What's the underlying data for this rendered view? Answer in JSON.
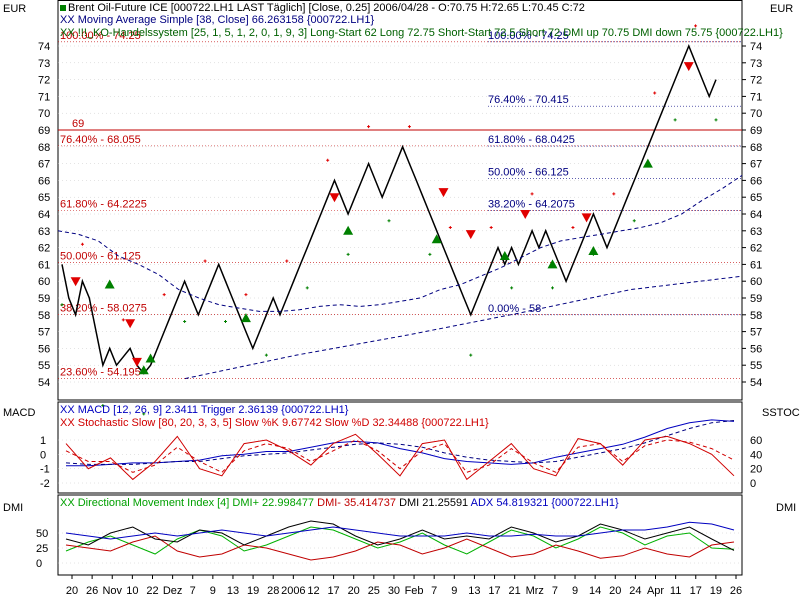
{
  "currency_left": "EUR",
  "currency_right": "EUR",
  "main_legend": {
    "line1": "Brent Oil-Future  ICE [000722.LH1 LAST Täglich] [Close, 0.25] 2006/04/28 - O:70.75 H:72.65 L:70.45 C:72",
    "line2": "XX Moving Average Simple [38, Close] 66.263158 {000722.LH1}",
    "line3": "XX !!!_KO-Handelssystem [25, 1, 5, 1, 2, 0, 1, 9, 3] Long-Start 62 Long 72.75 Short-Start 72.5 Short 72 DMI up 70.75 DMI down 75.75 {000722.LH1}"
  },
  "macd_panel": {
    "left_label": "MACD",
    "right_label": "SSTOC",
    "legend1": "XX MACD [12, 26, 9] 2.3411 Trigger 2.36139 {000722.LH1}",
    "legend2": "XX Stochastic Slow [80, 20, 3, 3, 5] Slow %K 9.67742 Slow %D 32.34488 {000722.LH1}"
  },
  "dmi_panel": {
    "left_label": "DMI",
    "right_label": "DMI",
    "legend_green": "XX Directional Movement Index [4] DMI+ 22.998477",
    "legend_red": "DMI- 35.414737",
    "legend_black": "DMI 21.25591",
    "legend_blue": "ADX 54.819321 {000722.LH1}"
  },
  "colors": {
    "price": "#000000",
    "fib_left": "#c00000",
    "fib_right": "#000080",
    "grid": "#c8c8c8",
    "buy": "#008000",
    "sell": "#e00000",
    "ma": "#000080",
    "macd": "#0000c0",
    "trigger": "#000080",
    "stoch": "#d00000"
  },
  "chart_data": [
    {
      "type": "line",
      "title": "Brent Oil-Future ICE",
      "ylabel": "EUR",
      "ylim": [
        53.5,
        74.5
      ],
      "yticks": [
        54,
        55,
        56,
        57,
        58,
        59,
        60,
        61,
        62,
        63,
        64,
        65,
        66,
        67,
        68,
        69,
        70,
        71,
        72,
        73,
        74
      ],
      "x_tick_labels": [
        "20",
        "26",
        "Nov",
        "10",
        "22",
        "Dez",
        "7",
        "9",
        "13",
        "19",
        "28",
        "2006",
        "12",
        "17",
        "20",
        "25",
        "30",
        "Feb",
        "7",
        "9",
        "13",
        "17",
        "21",
        "Mrz",
        "7",
        "9",
        "14",
        "20",
        "24",
        "Apr",
        "11",
        "17",
        "19",
        "26"
      ],
      "series": [
        {
          "name": "Brent Oil-Future",
          "values": [
            61,
            59,
            58,
            60,
            59,
            57,
            55,
            56,
            55,
            55.5,
            56,
            55,
            54.5,
            55,
            56,
            57,
            58,
            59,
            60,
            59,
            58,
            59,
            60,
            61,
            60,
            59,
            58,
            57,
            56,
            57,
            58,
            59,
            58,
            59,
            60,
            61,
            62,
            63,
            64,
            65,
            66,
            65,
            64,
            65,
            66,
            67,
            66,
            65,
            66,
            67,
            68,
            67,
            66,
            65,
            64,
            63,
            62,
            61,
            60,
            59,
            58,
            59,
            60,
            61,
            62,
            61,
            62,
            61,
            62,
            63,
            62,
            63,
            62,
            61,
            60,
            61,
            62,
            63,
            64,
            63,
            62,
            63,
            64,
            65,
            66,
            67,
            68,
            69,
            70,
            71,
            72,
            73,
            74,
            73,
            72,
            71,
            72
          ]
        },
        {
          "name": "Moving Average Simple [38, Close]",
          "values": [
            63,
            62.8,
            62.4,
            61.5,
            61,
            60.4,
            59.5,
            59,
            58.6,
            58.4,
            58.2,
            58.2,
            58.3,
            58.5,
            58.6,
            58.5,
            58.6,
            58.8,
            59,
            59.5,
            59.8,
            60.3,
            60.8,
            61.4,
            62,
            62.4,
            62.6,
            62.8,
            63,
            63.2,
            63.5,
            64,
            64.8,
            65.5,
            66.3
          ]
        },
        {
          "name": "Trendline",
          "values": [
            54.2,
            55.6,
            56.8,
            58.1,
            59.5,
            60.3
          ]
        }
      ],
      "fibonacci_left": [
        {
          "label": "100.00% - 74.25",
          "value": 74.25
        },
        {
          "label": "69",
          "value": 69
        },
        {
          "label": "76.40% - 68.055",
          "value": 68.055
        },
        {
          "label": "61.80% - 64.2225",
          "value": 64.2225
        },
        {
          "label": "50.00% - 61.125",
          "value": 61.125
        },
        {
          "label": "38.20% - 58.0275",
          "value": 58.0275
        },
        {
          "label": "23.60% - 54.195",
          "value": 54.195
        }
      ],
      "fibonacci_right": [
        {
          "label": "100.00% - 74.25",
          "value": 74.25
        },
        {
          "label": "76.40% - 70.415",
          "value": 70.415
        },
        {
          "label": "61.80% - 68.0425",
          "value": 68.0425
        },
        {
          "label": "50.00% - 66.125",
          "value": 66.125
        },
        {
          "label": "38.20% - 64.2075",
          "value": 64.2075
        },
        {
          "label": "0.00% - 58",
          "value": 58
        }
      ],
      "signals_buy": [
        [
          7,
          59.8
        ],
        [
          12,
          54.7
        ],
        [
          13,
          55.4
        ],
        [
          27,
          57.8
        ],
        [
          42,
          63
        ],
        [
          55,
          62.5
        ],
        [
          65,
          61.5
        ],
        [
          72,
          61
        ],
        [
          78,
          61.8
        ],
        [
          86,
          67
        ]
      ],
      "signals_sell": [
        [
          2,
          60
        ],
        [
          10,
          57.5
        ],
        [
          11,
          55.2
        ],
        [
          40,
          65
        ],
        [
          56,
          65.3
        ],
        [
          60,
          62.8
        ],
        [
          68,
          64
        ],
        [
          77,
          63.8
        ],
        [
          92,
          72.8
        ]
      ]
    },
    {
      "type": "line",
      "title": "MACD / Stochastic Slow",
      "ylim_macd": [
        -2.3,
        2.3
      ],
      "yticks_macd": [
        -2,
        -1,
        0,
        1
      ],
      "yticks_stoch": [
        0,
        20,
        40,
        60
      ],
      "series": [
        {
          "name": "MACD",
          "values": [
            -0.8,
            -0.8,
            -0.7,
            -0.6,
            -0.6,
            -0.5,
            -0.4,
            -0.1,
            0,
            0.2,
            0.2,
            0.5,
            0.8,
            0.9,
            0.8,
            0.4,
            0.1,
            -0.3,
            -0.5,
            -0.6,
            -0.7,
            -0.6,
            -0.2,
            0.1,
            0.4,
            0.7,
            1.2,
            1.8,
            2.2,
            2.4,
            2.3
          ]
        },
        {
          "name": "Trigger",
          "values": [
            -0.6,
            -0.7,
            -0.7,
            -0.7,
            -0.6,
            -0.5,
            -0.5,
            -0.3,
            -0.1,
            0,
            0.1,
            0.3,
            0.5,
            0.7,
            0.8,
            0.7,
            0.5,
            0.1,
            -0.2,
            -0.4,
            -0.5,
            -0.6,
            -0.5,
            -0.2,
            0.1,
            0.4,
            0.8,
            1.3,
            1.8,
            2.2,
            2.36
          ]
        },
        {
          "name": "Slow %K",
          "values": [
            55,
            20,
            35,
            5,
            30,
            65,
            20,
            10,
            55,
            60,
            45,
            25,
            55,
            68,
            40,
            10,
            55,
            60,
            5,
            30,
            55,
            20,
            10,
            62,
            55,
            25,
            60,
            65,
            55,
            40,
            10
          ]
        },
        {
          "name": "Slow %D",
          "values": [
            45,
            30,
            30,
            15,
            25,
            50,
            30,
            15,
            45,
            55,
            48,
            30,
            45,
            60,
            45,
            20,
            45,
            55,
            15,
            25,
            48,
            28,
            15,
            50,
            55,
            30,
            52,
            60,
            57,
            48,
            32
          ]
        }
      ]
    },
    {
      "type": "line",
      "title": "Directional Movement Index",
      "ylim": [
        0,
        80
      ],
      "yticks": [
        0,
        25,
        50
      ],
      "series": [
        {
          "name": "DMI+",
          "values": [
            20,
            35,
            45,
            30,
            15,
            40,
            55,
            45,
            20,
            30,
            45,
            60,
            55,
            40,
            25,
            35,
            50,
            30,
            15,
            35,
            55,
            45,
            25,
            40,
            60,
            50,
            30,
            45,
            50,
            25,
            23
          ]
        },
        {
          "name": "DMI-",
          "values": [
            30,
            25,
            20,
            35,
            45,
            20,
            10,
            15,
            30,
            25,
            15,
            5,
            10,
            20,
            35,
            30,
            15,
            25,
            40,
            25,
            10,
            15,
            30,
            20,
            8,
            12,
            25,
            15,
            10,
            30,
            35
          ]
        },
        {
          "name": "DMI",
          "values": [
            40,
            30,
            50,
            60,
            40,
            35,
            55,
            50,
            30,
            45,
            60,
            70,
            65,
            45,
            30,
            40,
            55,
            40,
            45,
            40,
            60,
            50,
            35,
            45,
            65,
            55,
            40,
            50,
            60,
            40,
            21
          ]
        },
        {
          "name": "ADX",
          "values": [
            50,
            45,
            40,
            45,
            50,
            45,
            50,
            55,
            50,
            45,
            50,
            55,
            60,
            55,
            50,
            45,
            45,
            45,
            50,
            45,
            45,
            48,
            45,
            45,
            50,
            55,
            55,
            60,
            68,
            65,
            55
          ]
        }
      ]
    }
  ]
}
